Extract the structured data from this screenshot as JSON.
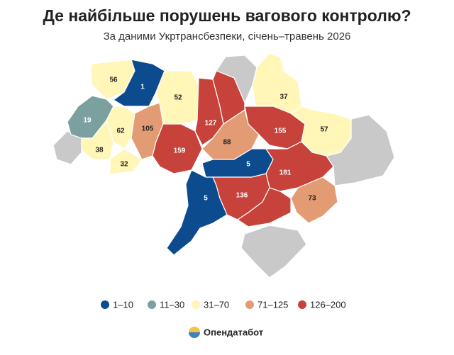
{
  "map": {
    "title": "Де найбільше порушень вагового контролю?",
    "subtitle": "За даними Укртрансбезпеки, січень–травень 2026",
    "legend": [
      {
        "label": "1–10",
        "color": "#0c4b8e"
      },
      {
        "label": "11–30",
        "color": "#7c9fa0"
      },
      {
        "label": "31–70",
        "color": "#fff6b8"
      },
      {
        "label": "71–125",
        "color": "#e39b74"
      },
      {
        "label": "126–200",
        "color": "#c6423a"
      }
    ],
    "regions": [
      {
        "value": 56,
        "color": "#fff6b8"
      },
      {
        "value": 1,
        "color": "#0c4b8e"
      },
      {
        "value": 19,
        "color": "#7c9fa0"
      },
      {
        "value": 62,
        "color": "#fff6b8"
      },
      {
        "value": 38,
        "color": "#fff6b8"
      },
      {
        "value": 32,
        "color": "#fff6b8"
      },
      {
        "value": 105,
        "color": "#e39b74"
      },
      {
        "value": 52,
        "color": "#fff6b8"
      },
      {
        "value": 159,
        "color": "#c6423a"
      },
      {
        "value": 127,
        "color": "#c6423a"
      },
      {
        "value": null,
        "color": "#c6423a"
      },
      {
        "value": 37,
        "color": "#fff6b8"
      },
      {
        "value": 155,
        "color": "#c6423a"
      },
      {
        "value": 57,
        "color": "#fff6b8"
      },
      {
        "value": 88,
        "color": "#e39b74"
      },
      {
        "value": 5,
        "color": "#0c4b8e"
      },
      {
        "value": 181,
        "color": "#c6423a"
      },
      {
        "value": 73,
        "color": "#e39b74"
      },
      {
        "value": 136,
        "color": "#c6423a"
      },
      {
        "value": null,
        "color": "#c6423a"
      },
      {
        "value": 5,
        "color": "#0c4b8e"
      }
    ],
    "brand": "Опендатабот"
  }
}
